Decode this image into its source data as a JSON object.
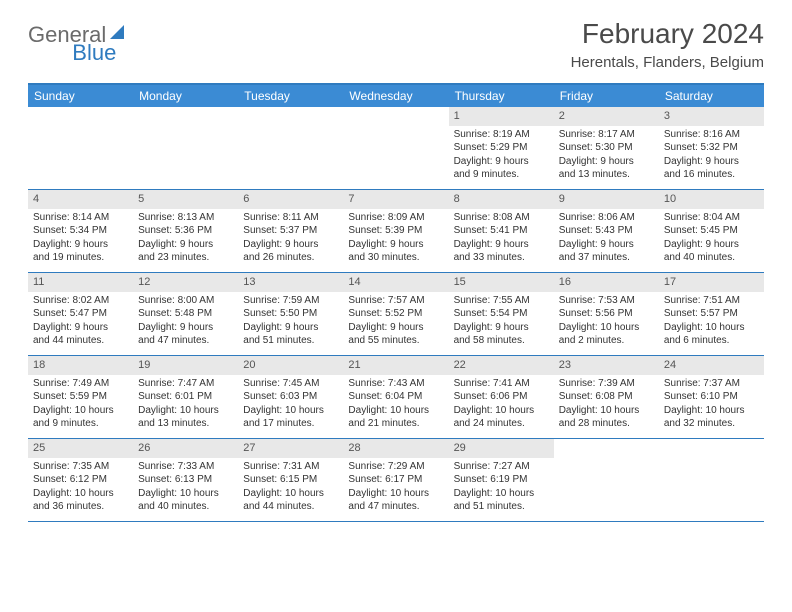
{
  "logo": {
    "text1": "General",
    "text2": "Blue"
  },
  "title": "February 2024",
  "location": "Herentals, Flanders, Belgium",
  "colors": {
    "header_bg": "#3b8bd4",
    "rule": "#2f7bbf",
    "daynum_bg": "#e8e8e8",
    "text": "#333333",
    "logo_gray": "#6b6b6b",
    "logo_blue": "#2f7bbf"
  },
  "day_labels": [
    "Sunday",
    "Monday",
    "Tuesday",
    "Wednesday",
    "Thursday",
    "Friday",
    "Saturday"
  ],
  "weeks": [
    [
      {
        "num": "",
        "sunrise": "",
        "sunset": "",
        "daylight1": "",
        "daylight2": ""
      },
      {
        "num": "",
        "sunrise": "",
        "sunset": "",
        "daylight1": "",
        "daylight2": ""
      },
      {
        "num": "",
        "sunrise": "",
        "sunset": "",
        "daylight1": "",
        "daylight2": ""
      },
      {
        "num": "",
        "sunrise": "",
        "sunset": "",
        "daylight1": "",
        "daylight2": ""
      },
      {
        "num": "1",
        "sunrise": "Sunrise: 8:19 AM",
        "sunset": "Sunset: 5:29 PM",
        "daylight1": "Daylight: 9 hours",
        "daylight2": "and 9 minutes."
      },
      {
        "num": "2",
        "sunrise": "Sunrise: 8:17 AM",
        "sunset": "Sunset: 5:30 PM",
        "daylight1": "Daylight: 9 hours",
        "daylight2": "and 13 minutes."
      },
      {
        "num": "3",
        "sunrise": "Sunrise: 8:16 AM",
        "sunset": "Sunset: 5:32 PM",
        "daylight1": "Daylight: 9 hours",
        "daylight2": "and 16 minutes."
      }
    ],
    [
      {
        "num": "4",
        "sunrise": "Sunrise: 8:14 AM",
        "sunset": "Sunset: 5:34 PM",
        "daylight1": "Daylight: 9 hours",
        "daylight2": "and 19 minutes."
      },
      {
        "num": "5",
        "sunrise": "Sunrise: 8:13 AM",
        "sunset": "Sunset: 5:36 PM",
        "daylight1": "Daylight: 9 hours",
        "daylight2": "and 23 minutes."
      },
      {
        "num": "6",
        "sunrise": "Sunrise: 8:11 AM",
        "sunset": "Sunset: 5:37 PM",
        "daylight1": "Daylight: 9 hours",
        "daylight2": "and 26 minutes."
      },
      {
        "num": "7",
        "sunrise": "Sunrise: 8:09 AM",
        "sunset": "Sunset: 5:39 PM",
        "daylight1": "Daylight: 9 hours",
        "daylight2": "and 30 minutes."
      },
      {
        "num": "8",
        "sunrise": "Sunrise: 8:08 AM",
        "sunset": "Sunset: 5:41 PM",
        "daylight1": "Daylight: 9 hours",
        "daylight2": "and 33 minutes."
      },
      {
        "num": "9",
        "sunrise": "Sunrise: 8:06 AM",
        "sunset": "Sunset: 5:43 PM",
        "daylight1": "Daylight: 9 hours",
        "daylight2": "and 37 minutes."
      },
      {
        "num": "10",
        "sunrise": "Sunrise: 8:04 AM",
        "sunset": "Sunset: 5:45 PM",
        "daylight1": "Daylight: 9 hours",
        "daylight2": "and 40 minutes."
      }
    ],
    [
      {
        "num": "11",
        "sunrise": "Sunrise: 8:02 AM",
        "sunset": "Sunset: 5:47 PM",
        "daylight1": "Daylight: 9 hours",
        "daylight2": "and 44 minutes."
      },
      {
        "num": "12",
        "sunrise": "Sunrise: 8:00 AM",
        "sunset": "Sunset: 5:48 PM",
        "daylight1": "Daylight: 9 hours",
        "daylight2": "and 47 minutes."
      },
      {
        "num": "13",
        "sunrise": "Sunrise: 7:59 AM",
        "sunset": "Sunset: 5:50 PM",
        "daylight1": "Daylight: 9 hours",
        "daylight2": "and 51 minutes."
      },
      {
        "num": "14",
        "sunrise": "Sunrise: 7:57 AM",
        "sunset": "Sunset: 5:52 PM",
        "daylight1": "Daylight: 9 hours",
        "daylight2": "and 55 minutes."
      },
      {
        "num": "15",
        "sunrise": "Sunrise: 7:55 AM",
        "sunset": "Sunset: 5:54 PM",
        "daylight1": "Daylight: 9 hours",
        "daylight2": "and 58 minutes."
      },
      {
        "num": "16",
        "sunrise": "Sunrise: 7:53 AM",
        "sunset": "Sunset: 5:56 PM",
        "daylight1": "Daylight: 10 hours",
        "daylight2": "and 2 minutes."
      },
      {
        "num": "17",
        "sunrise": "Sunrise: 7:51 AM",
        "sunset": "Sunset: 5:57 PM",
        "daylight1": "Daylight: 10 hours",
        "daylight2": "and 6 minutes."
      }
    ],
    [
      {
        "num": "18",
        "sunrise": "Sunrise: 7:49 AM",
        "sunset": "Sunset: 5:59 PM",
        "daylight1": "Daylight: 10 hours",
        "daylight2": "and 9 minutes."
      },
      {
        "num": "19",
        "sunrise": "Sunrise: 7:47 AM",
        "sunset": "Sunset: 6:01 PM",
        "daylight1": "Daylight: 10 hours",
        "daylight2": "and 13 minutes."
      },
      {
        "num": "20",
        "sunrise": "Sunrise: 7:45 AM",
        "sunset": "Sunset: 6:03 PM",
        "daylight1": "Daylight: 10 hours",
        "daylight2": "and 17 minutes."
      },
      {
        "num": "21",
        "sunrise": "Sunrise: 7:43 AM",
        "sunset": "Sunset: 6:04 PM",
        "daylight1": "Daylight: 10 hours",
        "daylight2": "and 21 minutes."
      },
      {
        "num": "22",
        "sunrise": "Sunrise: 7:41 AM",
        "sunset": "Sunset: 6:06 PM",
        "daylight1": "Daylight: 10 hours",
        "daylight2": "and 24 minutes."
      },
      {
        "num": "23",
        "sunrise": "Sunrise: 7:39 AM",
        "sunset": "Sunset: 6:08 PM",
        "daylight1": "Daylight: 10 hours",
        "daylight2": "and 28 minutes."
      },
      {
        "num": "24",
        "sunrise": "Sunrise: 7:37 AM",
        "sunset": "Sunset: 6:10 PM",
        "daylight1": "Daylight: 10 hours",
        "daylight2": "and 32 minutes."
      }
    ],
    [
      {
        "num": "25",
        "sunrise": "Sunrise: 7:35 AM",
        "sunset": "Sunset: 6:12 PM",
        "daylight1": "Daylight: 10 hours",
        "daylight2": "and 36 minutes."
      },
      {
        "num": "26",
        "sunrise": "Sunrise: 7:33 AM",
        "sunset": "Sunset: 6:13 PM",
        "daylight1": "Daylight: 10 hours",
        "daylight2": "and 40 minutes."
      },
      {
        "num": "27",
        "sunrise": "Sunrise: 7:31 AM",
        "sunset": "Sunset: 6:15 PM",
        "daylight1": "Daylight: 10 hours",
        "daylight2": "and 44 minutes."
      },
      {
        "num": "28",
        "sunrise": "Sunrise: 7:29 AM",
        "sunset": "Sunset: 6:17 PM",
        "daylight1": "Daylight: 10 hours",
        "daylight2": "and 47 minutes."
      },
      {
        "num": "29",
        "sunrise": "Sunrise: 7:27 AM",
        "sunset": "Sunset: 6:19 PM",
        "daylight1": "Daylight: 10 hours",
        "daylight2": "and 51 minutes."
      },
      {
        "num": "",
        "sunrise": "",
        "sunset": "",
        "daylight1": "",
        "daylight2": ""
      },
      {
        "num": "",
        "sunrise": "",
        "sunset": "",
        "daylight1": "",
        "daylight2": ""
      }
    ]
  ]
}
